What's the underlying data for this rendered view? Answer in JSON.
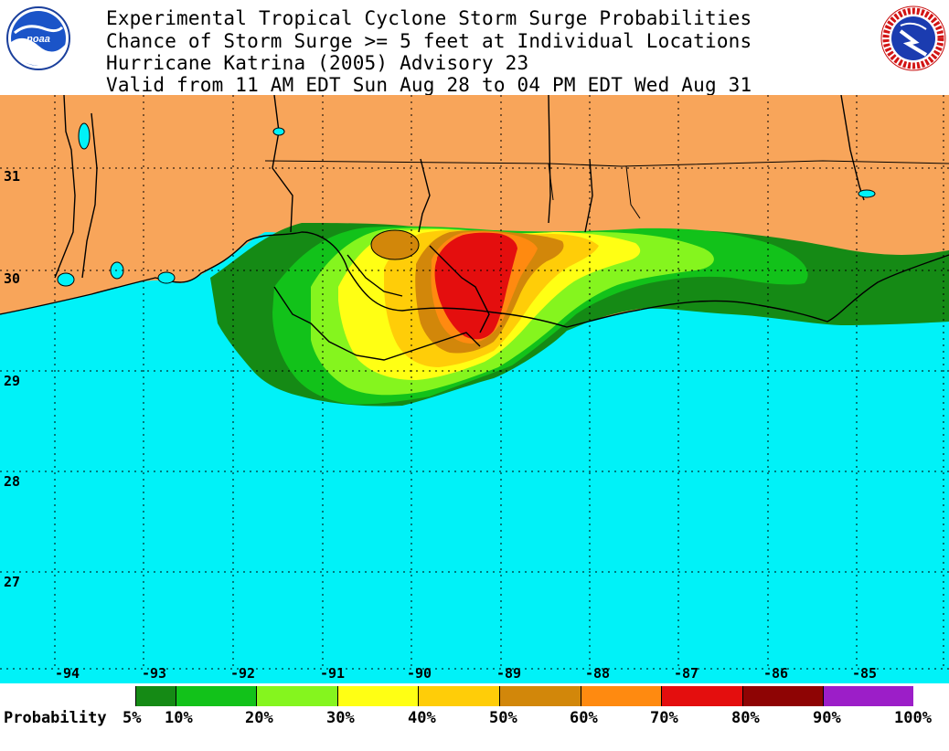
{
  "header": {
    "lines": [
      "Experimental Tropical Cyclone Storm Surge Probabilities",
      "Chance of Storm Surge >= 5 feet at Individual Locations",
      "Hurricane Katrina (2005) Advisory 23",
      "Valid from 11 AM EDT Sun Aug 28 to 04 PM EDT Wed Aug 31"
    ]
  },
  "logos": {
    "left": "NOAA",
    "right": "NATIONAL WEATHER SERVICE"
  },
  "colors": {
    "land": "#f8a55a",
    "water": "#00f2f8",
    "c5": "#158a15",
    "c10": "#12c21a",
    "c20": "#85f51e",
    "c30": "#ffff14",
    "c40": "#ffcd08",
    "c50": "#d2870a",
    "c60": "#ff8a10",
    "c70": "#e40e0e",
    "c80": "#8e0404",
    "c90": "#9c1ec8"
  },
  "map": {
    "lat_labels": [
      "31",
      "30",
      "29",
      "28",
      "27"
    ],
    "lon_labels": [
      "-94",
      "-93",
      "-92",
      "-91",
      "-90",
      "-89",
      "-88",
      "-87",
      "-86",
      "-85"
    ]
  },
  "legend": {
    "title": "Probability",
    "labels": [
      "5%",
      "10%",
      "20%",
      "30%",
      "40%",
      "50%",
      "60%",
      "70%",
      "80%",
      "90%",
      "100%"
    ]
  }
}
